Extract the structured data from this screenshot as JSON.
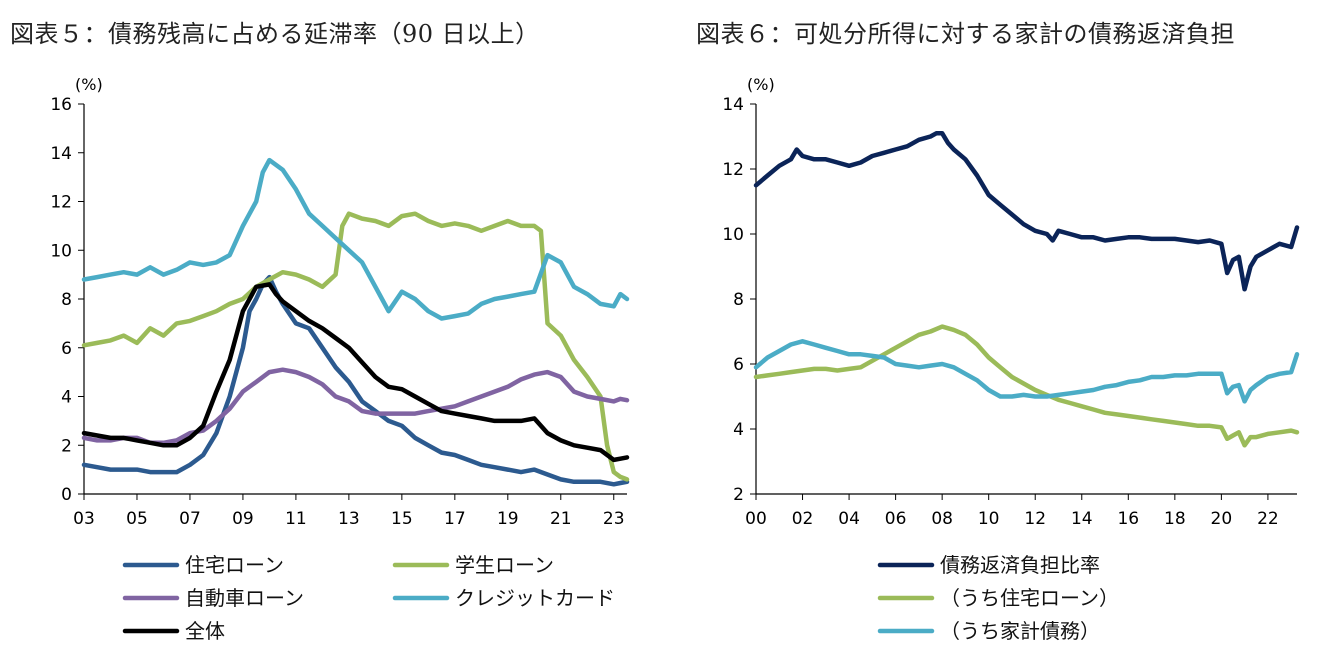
{
  "chart_data": [
    {
      "type": "line",
      "title": "図表５：債務残高に占める延滞率（90 日以上）",
      "unit_label": "(%)",
      "ylim": [
        0,
        16
      ],
      "yticks": [
        0,
        2,
        4,
        6,
        8,
        10,
        12,
        14,
        16
      ],
      "xlim": [
        2003,
        2023.5
      ],
      "xticks": [
        2003,
        2005,
        2007,
        2009,
        2011,
        2013,
        2015,
        2017,
        2019,
        2021,
        2023
      ],
      "xtick_labels": [
        "03",
        "05",
        "07",
        "09",
        "11",
        "13",
        "15",
        "17",
        "19",
        "21",
        "23"
      ],
      "series": [
        {
          "name": "住宅ローン",
          "color": "#2c5a8f",
          "x": [
            2003,
            2003.5,
            2004,
            2004.5,
            2005,
            2005.5,
            2006,
            2006.5,
            2007,
            2007.5,
            2008,
            2008.5,
            2009,
            2009.25,
            2009.5,
            2009.75,
            2010,
            2010.25,
            2010.5,
            2011,
            2011.5,
            2012,
            2012.5,
            2013,
            2013.5,
            2014,
            2014.5,
            2015,
            2015.5,
            2016,
            2016.5,
            2017,
            2017.5,
            2018,
            2018.5,
            2019,
            2019.5,
            2020,
            2020.5,
            2021,
            2021.5,
            2022,
            2022.5,
            2023,
            2023.25,
            2023.5
          ],
          "values": [
            1.2,
            1.1,
            1.0,
            1.0,
            1.0,
            0.9,
            0.9,
            0.9,
            1.2,
            1.6,
            2.5,
            4.0,
            6.0,
            7.5,
            8.0,
            8.6,
            8.9,
            8.3,
            7.8,
            7.0,
            6.8,
            6.0,
            5.2,
            4.6,
            3.8,
            3.4,
            3.0,
            2.8,
            2.3,
            2.0,
            1.7,
            1.6,
            1.4,
            1.2,
            1.1,
            1.0,
            0.9,
            1.0,
            0.8,
            0.6,
            0.5,
            0.5,
            0.5,
            0.4,
            0.45,
            0.5
          ]
        },
        {
          "name": "学生ローン",
          "color": "#9bbb59",
          "x": [
            2003,
            2003.5,
            2004,
            2004.5,
            2005,
            2005.5,
            2006,
            2006.5,
            2007,
            2007.5,
            2008,
            2008.5,
            2009,
            2009.5,
            2010,
            2010.5,
            2011,
            2011.5,
            2012,
            2012.5,
            2012.75,
            2013,
            2013.5,
            2014,
            2014.5,
            2015,
            2015.5,
            2016,
            2016.5,
            2017,
            2017.5,
            2018,
            2018.5,
            2019,
            2019.5,
            2020,
            2020.25,
            2020.5,
            2021,
            2021.5,
            2022,
            2022.5,
            2022.75,
            2023,
            2023.25,
            2023.5
          ],
          "values": [
            6.1,
            6.2,
            6.3,
            6.5,
            6.2,
            6.8,
            6.5,
            7.0,
            7.1,
            7.3,
            7.5,
            7.8,
            8.0,
            8.5,
            8.8,
            9.1,
            9.0,
            8.8,
            8.5,
            9.0,
            11.0,
            11.5,
            11.3,
            11.2,
            11.0,
            11.4,
            11.5,
            11.2,
            11.0,
            11.1,
            11.0,
            10.8,
            11.0,
            11.2,
            11.0,
            11.0,
            10.8,
            7.0,
            6.5,
            5.5,
            4.8,
            4.0,
            2.0,
            0.9,
            0.7,
            0.6
          ]
        },
        {
          "name": "自動車ローン",
          "color": "#8064a2",
          "x": [
            2003,
            2003.5,
            2004,
            2004.5,
            2005,
            2005.5,
            2006,
            2006.5,
            2007,
            2007.5,
            2008,
            2008.5,
            2009,
            2009.5,
            2010,
            2010.5,
            2011,
            2011.5,
            2012,
            2012.5,
            2013,
            2013.5,
            2014,
            2014.5,
            2015,
            2015.5,
            2016,
            2016.5,
            2017,
            2017.5,
            2018,
            2018.5,
            2019,
            2019.5,
            2020,
            2020.5,
            2021,
            2021.5,
            2022,
            2022.5,
            2023,
            2023.25,
            2023.5
          ],
          "values": [
            2.3,
            2.2,
            2.2,
            2.3,
            2.3,
            2.1,
            2.1,
            2.2,
            2.5,
            2.6,
            3.0,
            3.5,
            4.2,
            4.6,
            5.0,
            5.1,
            5.0,
            4.8,
            4.5,
            4.0,
            3.8,
            3.4,
            3.3,
            3.3,
            3.3,
            3.3,
            3.4,
            3.5,
            3.6,
            3.8,
            4.0,
            4.2,
            4.4,
            4.7,
            4.9,
            5.0,
            4.8,
            4.2,
            4.0,
            3.9,
            3.8,
            3.9,
            3.85
          ]
        },
        {
          "name": "クレジットカード",
          "color": "#4bacc6",
          "x": [
            2003,
            2003.5,
            2004,
            2004.5,
            2005,
            2005.5,
            2006,
            2006.5,
            2007,
            2007.5,
            2008,
            2008.5,
            2009,
            2009.5,
            2009.75,
            2010,
            2010.5,
            2011,
            2011.5,
            2012,
            2012.5,
            2013,
            2013.5,
            2014,
            2014.5,
            2015,
            2015.5,
            2016,
            2016.5,
            2017,
            2017.5,
            2018,
            2018.5,
            2019,
            2019.5,
            2020,
            2020.5,
            2021,
            2021.5,
            2022,
            2022.5,
            2023,
            2023.25,
            2023.5
          ],
          "values": [
            8.8,
            8.9,
            9.0,
            9.1,
            9.0,
            9.3,
            9.0,
            9.2,
            9.5,
            9.4,
            9.5,
            9.8,
            11.0,
            12.0,
            13.2,
            13.7,
            13.3,
            12.5,
            11.5,
            11.0,
            10.5,
            10.0,
            9.5,
            8.5,
            7.5,
            8.3,
            8.0,
            7.5,
            7.2,
            7.3,
            7.4,
            7.8,
            8.0,
            8.1,
            8.2,
            8.3,
            9.8,
            9.5,
            8.5,
            8.2,
            7.8,
            7.7,
            8.2,
            8.0
          ]
        },
        {
          "name": "全体",
          "color": "#000000",
          "x": [
            2003,
            2003.5,
            2004,
            2004.5,
            2005,
            2005.5,
            2006,
            2006.5,
            2007,
            2007.5,
            2008,
            2008.5,
            2009,
            2009.5,
            2010,
            2010.25,
            2010.5,
            2011,
            2011.5,
            2012,
            2012.5,
            2013,
            2013.5,
            2014,
            2014.5,
            2015,
            2015.5,
            2016,
            2016.5,
            2017,
            2017.5,
            2018,
            2018.5,
            2019,
            2019.5,
            2020,
            2020.5,
            2021,
            2021.5,
            2022,
            2022.5,
            2023,
            2023.25,
            2023.5
          ],
          "values": [
            2.5,
            2.4,
            2.3,
            2.3,
            2.2,
            2.1,
            2.0,
            2.0,
            2.3,
            2.8,
            4.2,
            5.5,
            7.5,
            8.5,
            8.6,
            8.2,
            7.9,
            7.5,
            7.1,
            6.8,
            6.4,
            6.0,
            5.4,
            4.8,
            4.4,
            4.3,
            4.0,
            3.7,
            3.4,
            3.3,
            3.2,
            3.1,
            3.0,
            3.0,
            3.0,
            3.1,
            2.5,
            2.2,
            2.0,
            1.9,
            1.8,
            1.4,
            1.45,
            1.5
          ]
        }
      ]
    },
    {
      "type": "line",
      "title": "図表６：可処分所得に対する家計の債務返済負担",
      "unit_label": "(%)",
      "ylim": [
        2,
        14
      ],
      "yticks": [
        2,
        4,
        6,
        8,
        10,
        12,
        14
      ],
      "xlim": [
        2000,
        2023.25
      ],
      "xticks": [
        2000,
        2002,
        2004,
        2006,
        2008,
        2010,
        2012,
        2014,
        2016,
        2018,
        2020,
        2022
      ],
      "xtick_labels": [
        "00",
        "02",
        "04",
        "06",
        "08",
        "10",
        "12",
        "14",
        "16",
        "18",
        "20",
        "22"
      ],
      "series": [
        {
          "name": "債務返済負担比率",
          "color": "#0b2458",
          "x": [
            2000,
            2000.5,
            2001,
            2001.5,
            2001.75,
            2002,
            2002.5,
            2003,
            2003.5,
            2004,
            2004.5,
            2005,
            2005.5,
            2006,
            2006.5,
            2007,
            2007.5,
            2007.75,
            2008,
            2008.25,
            2008.5,
            2009,
            2009.5,
            2010,
            2010.5,
            2011,
            2011.5,
            2012,
            2012.5,
            2012.75,
            2013,
            2013.5,
            2014,
            2014.5,
            2015,
            2015.5,
            2016,
            2016.5,
            2017,
            2017.5,
            2018,
            2018.5,
            2019,
            2019.5,
            2020,
            2020.25,
            2020.5,
            2020.75,
            2021,
            2021.25,
            2021.5,
            2022,
            2022.5,
            2023,
            2023.25
          ],
          "values": [
            11.5,
            11.8,
            12.1,
            12.3,
            12.6,
            12.4,
            12.3,
            12.3,
            12.2,
            12.1,
            12.2,
            12.4,
            12.5,
            12.6,
            12.7,
            12.9,
            13.0,
            13.1,
            13.1,
            12.8,
            12.6,
            12.3,
            11.8,
            11.2,
            10.9,
            10.6,
            10.3,
            10.1,
            10.0,
            9.8,
            10.1,
            10.0,
            9.9,
            9.9,
            9.8,
            9.85,
            9.9,
            9.9,
            9.85,
            9.85,
            9.85,
            9.8,
            9.75,
            9.8,
            9.7,
            8.8,
            9.2,
            9.3,
            8.3,
            9.0,
            9.3,
            9.5,
            9.7,
            9.6,
            10.2
          ]
        },
        {
          "name": "（うち住宅ローン）",
          "color": "#9bbb59",
          "x": [
            2000,
            2000.5,
            2001,
            2001.5,
            2002,
            2002.5,
            2003,
            2003.5,
            2004,
            2004.5,
            2005,
            2005.5,
            2006,
            2006.5,
            2007,
            2007.5,
            2008,
            2008.5,
            2009,
            2009.5,
            2010,
            2010.5,
            2011,
            2011.5,
            2012,
            2012.5,
            2013,
            2013.5,
            2014,
            2014.5,
            2015,
            2015.5,
            2016,
            2016.5,
            2017,
            2017.5,
            2018,
            2018.5,
            2019,
            2019.5,
            2020,
            2020.25,
            2020.5,
            2020.75,
            2021,
            2021.25,
            2021.5,
            2022,
            2022.5,
            2023,
            2023.25
          ],
          "values": [
            5.6,
            5.65,
            5.7,
            5.75,
            5.8,
            5.85,
            5.85,
            5.8,
            5.85,
            5.9,
            6.1,
            6.3,
            6.5,
            6.7,
            6.9,
            7.0,
            7.15,
            7.05,
            6.9,
            6.6,
            6.2,
            5.9,
            5.6,
            5.4,
            5.2,
            5.05,
            4.9,
            4.8,
            4.7,
            4.6,
            4.5,
            4.45,
            4.4,
            4.35,
            4.3,
            4.25,
            4.2,
            4.15,
            4.1,
            4.1,
            4.05,
            3.7,
            3.8,
            3.9,
            3.5,
            3.75,
            3.75,
            3.85,
            3.9,
            3.95,
            3.9
          ]
        },
        {
          "name": "（うち家計債務）",
          "color": "#4bacc6",
          "x": [
            2000,
            2000.5,
            2001,
            2001.5,
            2002,
            2002.5,
            2003,
            2003.5,
            2004,
            2004.5,
            2005,
            2005.5,
            2006,
            2006.5,
            2007,
            2007.5,
            2008,
            2008.5,
            2009,
            2009.5,
            2010,
            2010.5,
            2011,
            2011.5,
            2012,
            2012.5,
            2013,
            2013.5,
            2014,
            2014.5,
            2015,
            2015.5,
            2016,
            2016.5,
            2017,
            2017.5,
            2018,
            2018.5,
            2019,
            2019.5,
            2020,
            2020.25,
            2020.5,
            2020.75,
            2021,
            2021.25,
            2021.5,
            2022,
            2022.5,
            2023,
            2023.25
          ],
          "values": [
            5.9,
            6.2,
            6.4,
            6.6,
            6.7,
            6.6,
            6.5,
            6.4,
            6.3,
            6.3,
            6.25,
            6.2,
            6.0,
            5.95,
            5.9,
            5.95,
            6.0,
            5.9,
            5.7,
            5.5,
            5.2,
            5.0,
            5.0,
            5.05,
            5.0,
            5.0,
            5.05,
            5.1,
            5.15,
            5.2,
            5.3,
            5.35,
            5.45,
            5.5,
            5.6,
            5.6,
            5.65,
            5.65,
            5.7,
            5.7,
            5.7,
            5.1,
            5.3,
            5.35,
            4.85,
            5.2,
            5.35,
            5.6,
            5.7,
            5.75,
            6.3
          ]
        }
      ]
    }
  ]
}
